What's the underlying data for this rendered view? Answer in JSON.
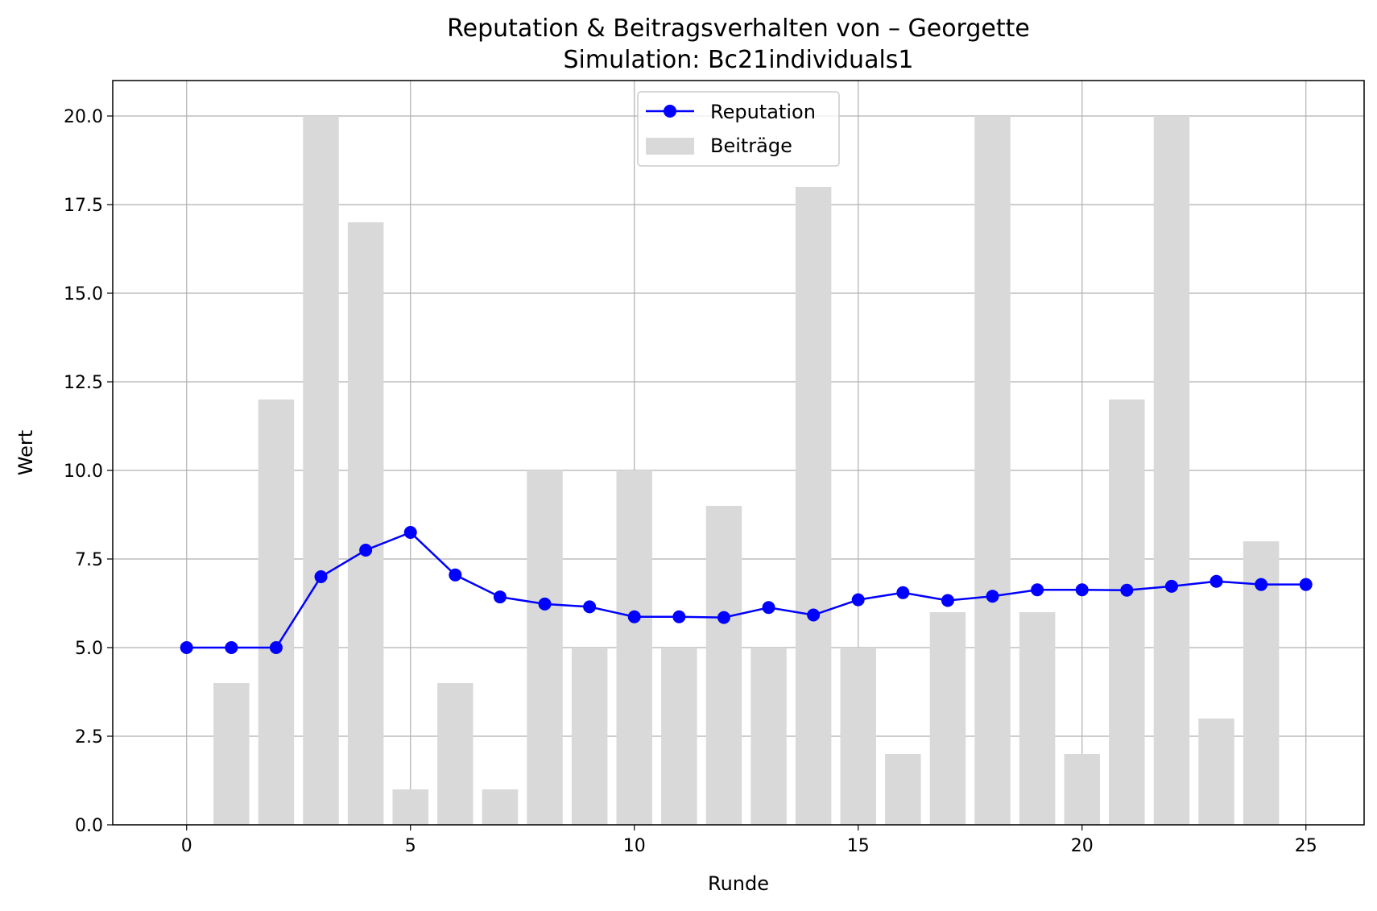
{
  "chart_data": {
    "type": "bar+line",
    "title": "Reputation & Beitragsverhalten von – Georgette",
    "subtitle": "Simulation: Bc21individuals1",
    "xlabel": "Runde",
    "ylabel": "Wert",
    "xlim": [
      -1.65,
      26.3
    ],
    "ylim": [
      0,
      21
    ],
    "xticks": [
      0,
      5,
      10,
      15,
      20,
      25
    ],
    "yticks": [
      0.0,
      2.5,
      5.0,
      7.5,
      10.0,
      12.5,
      15.0,
      17.5,
      20.0
    ],
    "grid": true,
    "legend_position": "top-center",
    "series": [
      {
        "name": "Reputation",
        "kind": "line",
        "color": "#0000ff",
        "marker": "circle",
        "x": [
          0,
          1,
          2,
          3,
          4,
          5,
          6,
          7,
          8,
          9,
          10,
          11,
          12,
          13,
          14,
          15,
          16,
          17,
          18,
          19,
          20,
          21,
          22,
          23,
          24,
          25
        ],
        "values": [
          5.0,
          5.0,
          5.0,
          7.0,
          7.75,
          8.25,
          7.05,
          6.43,
          6.23,
          6.15,
          5.87,
          5.87,
          5.85,
          6.13,
          5.92,
          6.35,
          6.55,
          6.33,
          6.45,
          6.63,
          6.63,
          6.62,
          6.73,
          6.87,
          6.78,
          6.78
        ]
      },
      {
        "name": "Beiträge",
        "kind": "bar",
        "color": "#d9d9d9",
        "x": [
          1,
          2,
          3,
          4,
          5,
          6,
          7,
          8,
          9,
          10,
          11,
          12,
          13,
          14,
          15,
          16,
          17,
          18,
          19,
          20,
          21,
          22,
          23,
          24
        ],
        "values": [
          4,
          12,
          20,
          17,
          1,
          4,
          1,
          10,
          5,
          10,
          5,
          9,
          5,
          18,
          5,
          2,
          6,
          20,
          6,
          2,
          12,
          20,
          3,
          8
        ]
      }
    ]
  }
}
